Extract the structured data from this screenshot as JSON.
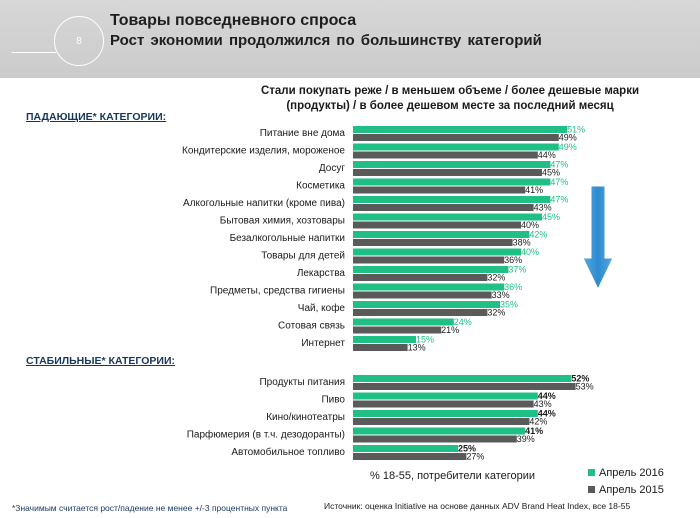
{
  "header": {
    "slide_number": "8",
    "title": "Товары повседневного спроса",
    "subtitle": "Рост экономии продолжился по большинству категорий"
  },
  "chart_data": {
    "type": "bar",
    "orientation": "horizontal",
    "title": "Стали покупать реже / в меньшем объеме / более дешевые марки (продукты) / в более дешевом месте за последний месяц",
    "xlabel": "% 18-55, потребители категории",
    "legend_position": "bottom-right",
    "colors": {
      "Апрель 2016": "#1fbf86",
      "Апрель 2015": "#5a5a5a"
    },
    "series_names": [
      "Апрель 2016",
      "Апрель 2015"
    ],
    "groups": [
      {
        "label": "ПАДАЮЩИЕ* КАТЕГОРИИ:",
        "categories": [
          "Питание вне дома",
          "Кондитерские изделия, мороженое",
          "Досуг",
          "Косметика",
          "Алкогольные напитки (кроме пива)",
          "Бытовая химия, хозтовары",
          "Безалкогольные напитки",
          "Товары для детей",
          "Лекарства",
          "Предметы, средства гигиены",
          "Чай, кофе",
          "Сотовая связь",
          "Интернет"
        ],
        "series": [
          {
            "name": "Апрель 2016",
            "values": [
              51,
              49,
              47,
              47,
              47,
              45,
              42,
              40,
              37,
              36,
              35,
              24,
              15
            ]
          },
          {
            "name": "Апрель 2015",
            "values": [
              49,
              44,
              45,
              41,
              43,
              40,
              38,
              36,
              32,
              33,
              32,
              21,
              13
            ]
          }
        ]
      },
      {
        "label": "СТАБИЛЬНЫЕ* КАТЕГОРИИ:",
        "categories": [
          "Продукты питания",
          "Пиво",
          "Кино/кинотеатры",
          "Парфюмерия (в т.ч. дезодоранты)",
          "Автомобильное топливо"
        ],
        "series": [
          {
            "name": "Апрель 2016",
            "values": [
              52,
              44,
              44,
              41,
              25
            ]
          },
          {
            "name": "Апрель 2015",
            "values": [
              53,
              43,
              42,
              39,
              27
            ]
          }
        ]
      }
    ]
  },
  "footer": {
    "note": "*Значимым считается рост/падение не менее +/-3 процентных пункта",
    "source": "Источник: оценка Initiative на основе данных ADV Brand Heat Index, все 18-55"
  }
}
